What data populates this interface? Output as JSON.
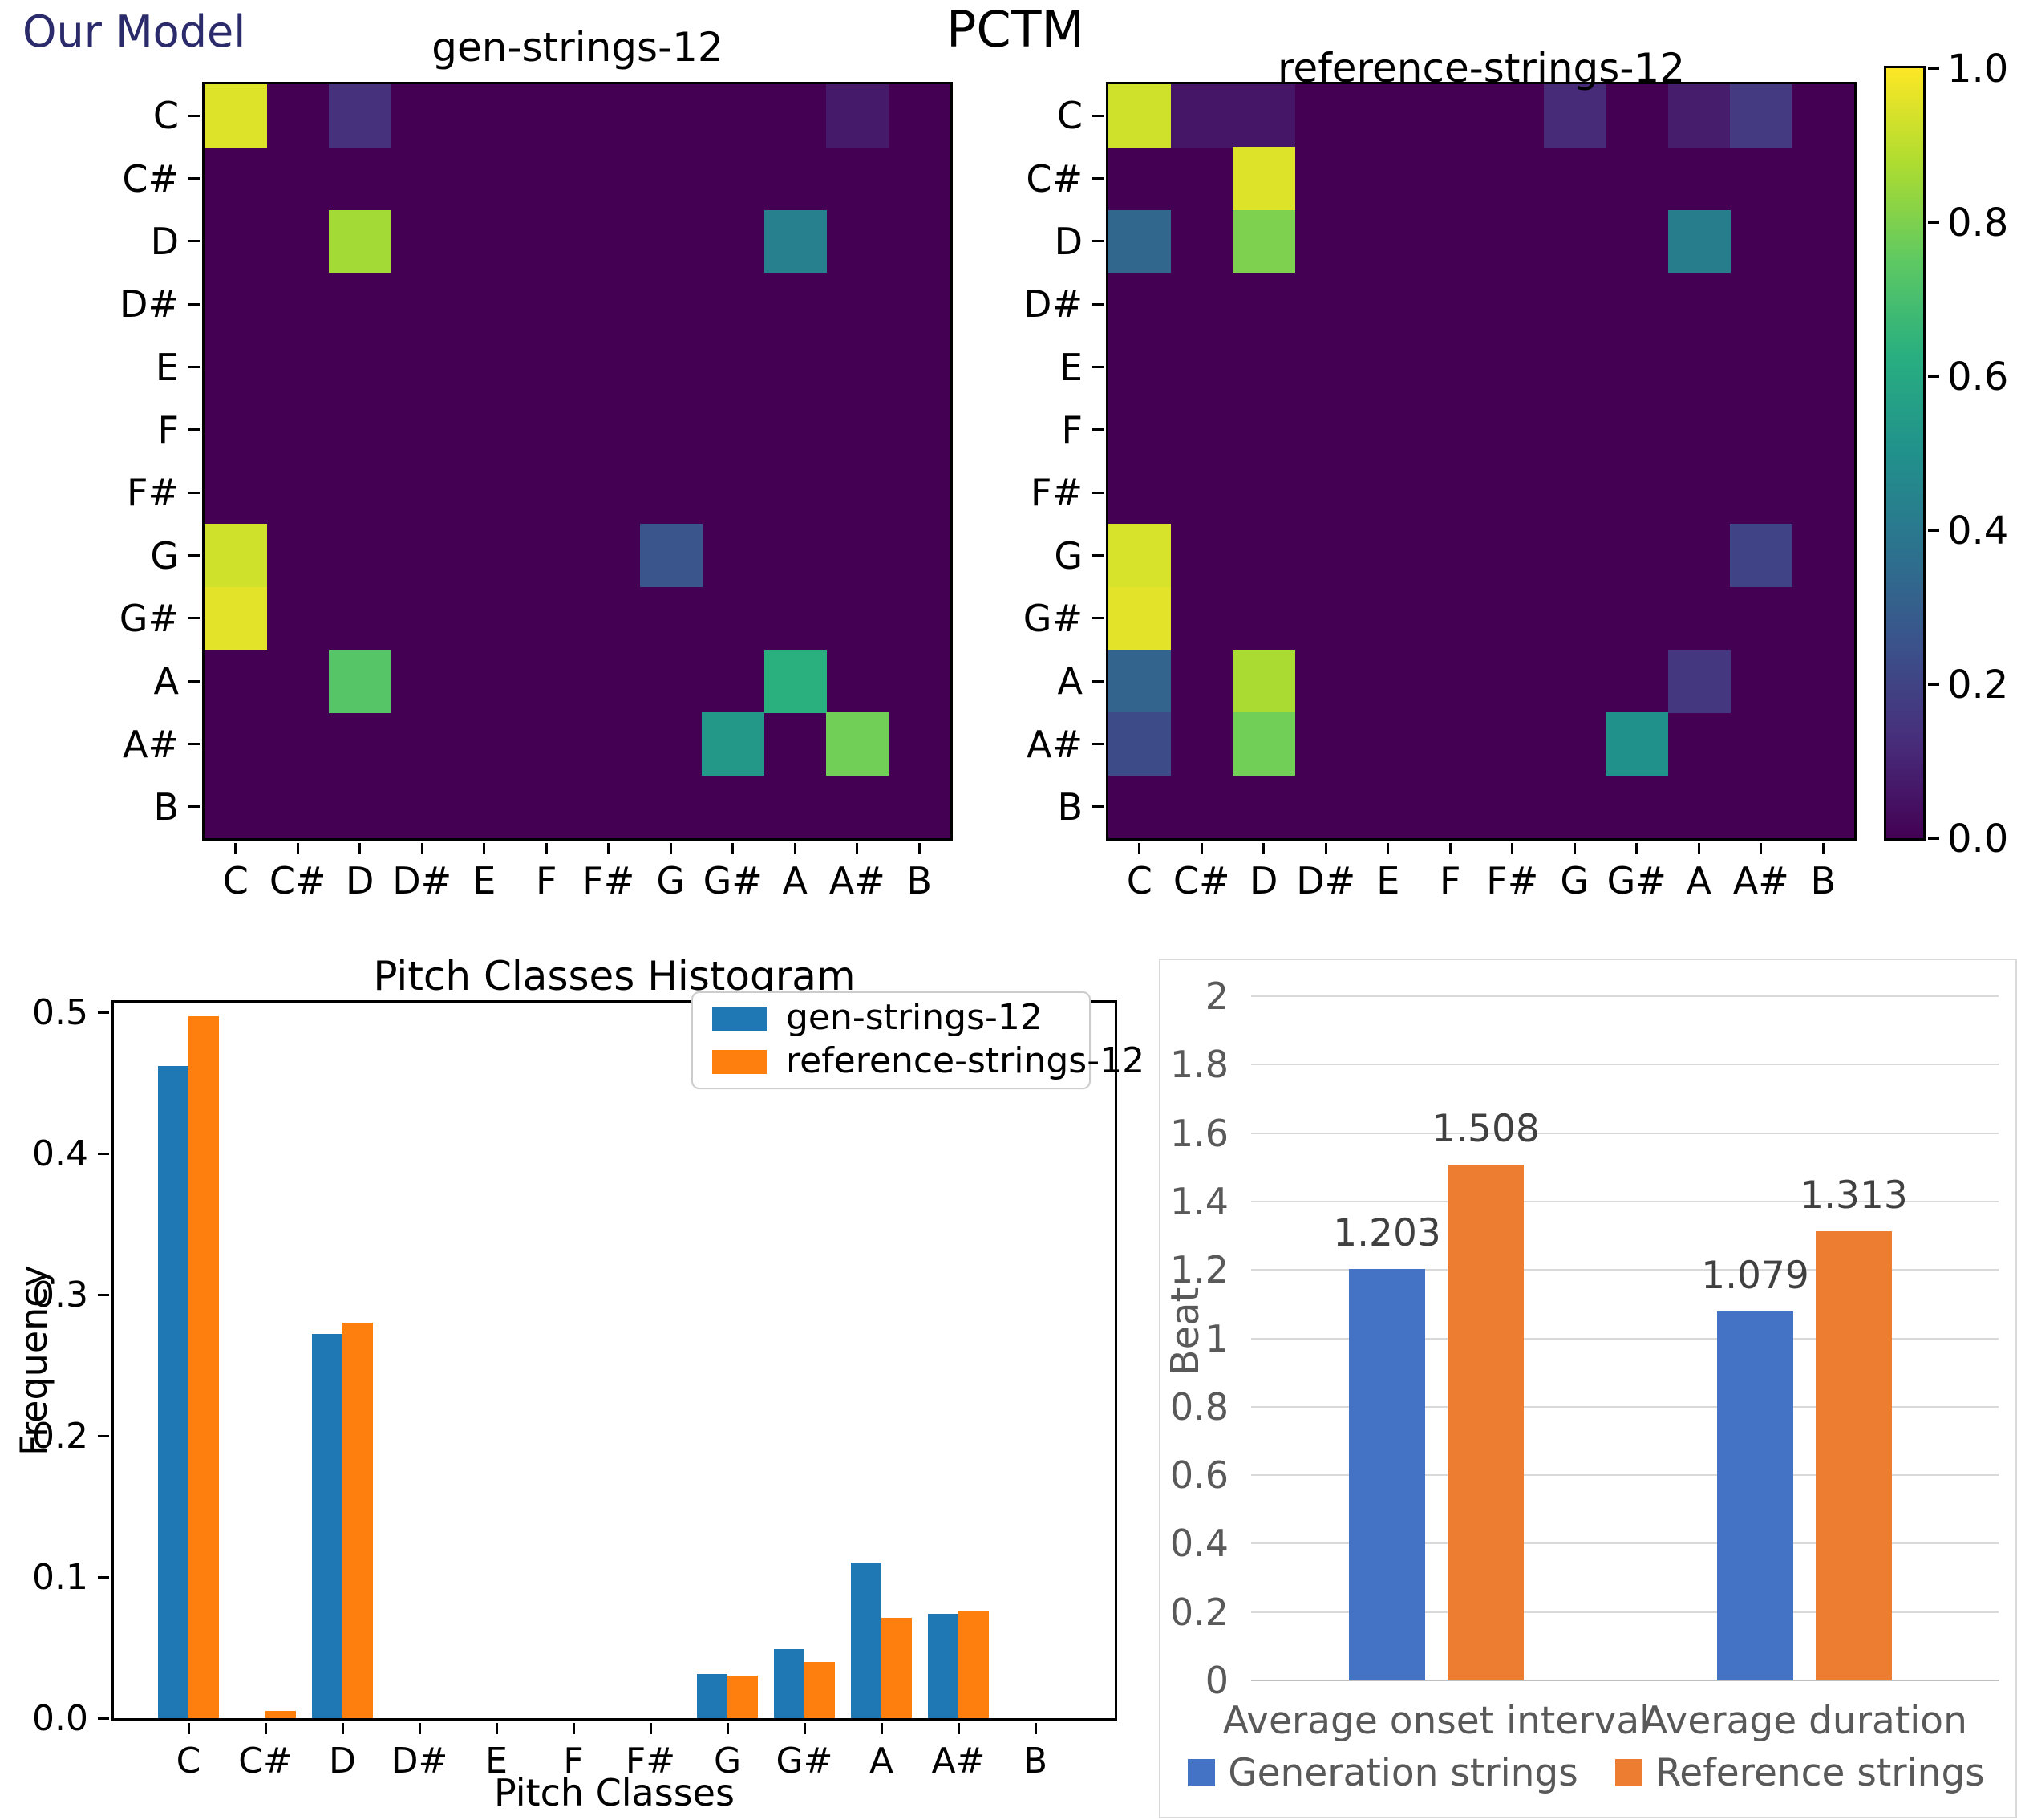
{
  "annotations": {
    "our_model": "Our Model",
    "our_model_color": "#2b2b6b",
    "pctm_title": "PCTM"
  },
  "colorbar": {
    "min": 0.0,
    "max": 1.0,
    "tick_labels": [
      "1.0",
      "0.8",
      "0.6",
      "0.4",
      "0.2",
      "0.0"
    ],
    "colormap": "viridis"
  },
  "chart_data": [
    {
      "id": "pctm_gen",
      "type": "heatmap",
      "title": "gen-strings-12",
      "colormap": "viridis",
      "zlim": [
        0.0,
        1.0
      ],
      "x_tick_labels": [
        "C",
        "C#",
        "D",
        "D#",
        "E",
        "F",
        "F#",
        "G",
        "G#",
        "A",
        "A#",
        "B"
      ],
      "y_tick_labels": [
        "C",
        "C#",
        "D",
        "D#",
        "E",
        "F",
        "F#",
        "G",
        "G#",
        "A",
        "A#",
        "B"
      ],
      "background_value": 0.0,
      "cells": [
        {
          "r": "C",
          "c": "C",
          "v": 0.95
        },
        {
          "r": "C",
          "c": "D",
          "v": 0.14
        },
        {
          "r": "C",
          "c": "A#",
          "v": 0.07
        },
        {
          "r": "D",
          "c": "D",
          "v": 0.86
        },
        {
          "r": "D",
          "c": "A",
          "v": 0.43
        },
        {
          "r": "G",
          "c": "C",
          "v": 0.93
        },
        {
          "r": "G",
          "c": "G",
          "v": 0.26
        },
        {
          "r": "G#",
          "c": "C",
          "v": 0.96
        },
        {
          "r": "A",
          "c": "D",
          "v": 0.73
        },
        {
          "r": "A",
          "c": "A",
          "v": 0.63
        },
        {
          "r": "A#",
          "c": "G#",
          "v": 0.53
        },
        {
          "r": "A#",
          "c": "A#",
          "v": 0.78
        }
      ]
    },
    {
      "id": "pctm_ref",
      "type": "heatmap",
      "title": "reference-strings-12",
      "colormap": "viridis",
      "zlim": [
        0.0,
        1.0
      ],
      "x_tick_labels": [
        "C",
        "C#",
        "D",
        "D#",
        "E",
        "F",
        "F#",
        "G",
        "G#",
        "A",
        "A#",
        "B"
      ],
      "y_tick_labels": [
        "C",
        "C#",
        "D",
        "D#",
        "E",
        "F",
        "F#",
        "G",
        "G#",
        "A",
        "A#",
        "B"
      ],
      "background_value": 0.0,
      "cells": [
        {
          "r": "C",
          "c": "C",
          "v": 0.93
        },
        {
          "r": "C",
          "c": "C#",
          "v": 0.06
        },
        {
          "r": "C",
          "c": "D",
          "v": 0.06
        },
        {
          "r": "C",
          "c": "G",
          "v": 0.12
        },
        {
          "r": "C",
          "c": "A",
          "v": 0.08
        },
        {
          "r": "C",
          "c": "A#",
          "v": 0.17
        },
        {
          "r": "C#",
          "c": "D",
          "v": 0.95
        },
        {
          "r": "D",
          "c": "C",
          "v": 0.33
        },
        {
          "r": "D",
          "c": "D",
          "v": 0.8
        },
        {
          "r": "D",
          "c": "A",
          "v": 0.42
        },
        {
          "r": "G",
          "c": "C",
          "v": 0.94
        },
        {
          "r": "G",
          "c": "A#",
          "v": 0.2
        },
        {
          "r": "G#",
          "c": "C",
          "v": 0.96
        },
        {
          "r": "A",
          "c": "C",
          "v": 0.32
        },
        {
          "r": "A",
          "c": "D",
          "v": 0.87
        },
        {
          "r": "A",
          "c": "A",
          "v": 0.16
        },
        {
          "r": "A#",
          "c": "C",
          "v": 0.23
        },
        {
          "r": "A#",
          "c": "D",
          "v": 0.78
        },
        {
          "r": "A#",
          "c": "G#",
          "v": 0.5
        }
      ]
    },
    {
      "id": "pitch_hist",
      "type": "bar",
      "title": "Pitch Classes Histogram",
      "xlabel": "Pitch Classes",
      "ylabel": "Frequency",
      "categories": [
        "C",
        "C#",
        "D",
        "D#",
        "E",
        "F",
        "F#",
        "G",
        "G#",
        "A",
        "A#",
        "B"
      ],
      "series": [
        {
          "name": "gen-strings-12",
          "color": "#1f77b4",
          "values": [
            0.462,
            0.0,
            0.272,
            0.0,
            0.0,
            0.0,
            0.0,
            0.031,
            0.049,
            0.11,
            0.074,
            0.0
          ]
        },
        {
          "name": "reference-strings-12",
          "color": "#ff7f0e",
          "values": [
            0.497,
            0.005,
            0.28,
            0.0,
            0.0,
            0.0,
            0.0,
            0.03,
            0.04,
            0.071,
            0.076,
            0.0
          ]
        }
      ],
      "ylim": [
        0.0,
        0.507
      ],
      "yticks": [
        0.0,
        0.1,
        0.2,
        0.3,
        0.4,
        0.5
      ],
      "legend_position": "upper right",
      "grid": false
    },
    {
      "id": "beat_chart",
      "type": "bar",
      "title": "",
      "ylabel": "Beat",
      "categories": [
        "Average onset interval",
        "Average duration"
      ],
      "series": [
        {
          "name": "Generation strings",
          "color": "#4472c4",
          "values": [
            1.203,
            1.079
          ]
        },
        {
          "name": "Reference strings",
          "color": "#ed7d31",
          "values": [
            1.508,
            1.313
          ]
        }
      ],
      "value_labels": [
        "1.203",
        "1.508",
        "1.079",
        "1.313"
      ],
      "ylim": [
        0,
        2
      ],
      "ytick_step": 0.2,
      "legend_position": "bottom",
      "grid": true,
      "text_color": "#595959",
      "value_label_color": "#404040",
      "gridline_color": "#d9d9d9",
      "baseline_color": "#bfbfbf"
    }
  ]
}
